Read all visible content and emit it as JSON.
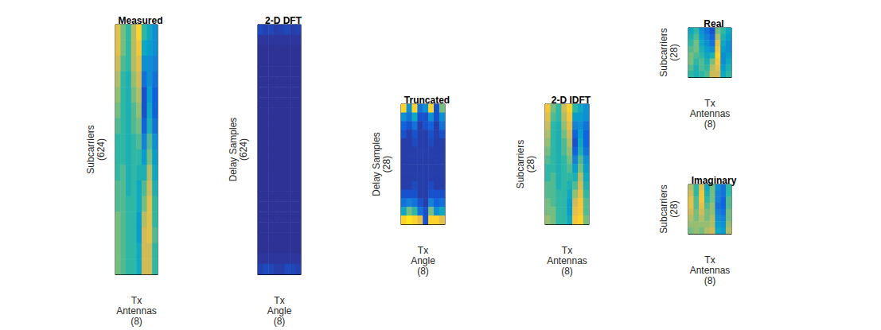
{
  "chart_data": [
    {
      "type": "heatmap",
      "title": "Measured",
      "x_label": "Tx\nAntennas\n(8)",
      "y_label": "Subcarriers\n(624)",
      "tick_labels": false,
      "zlim": [
        0,
        1
      ],
      "cells": [
        [
          0.8,
          0.6,
          0.5,
          0.7,
          0.9,
          0.5,
          0.4,
          0.3
        ],
        [
          0.8,
          0.6,
          0.5,
          0.7,
          0.85,
          0.4,
          0.35,
          0.3
        ],
        [
          0.75,
          0.55,
          0.5,
          0.7,
          0.8,
          0.3,
          0.3,
          0.25
        ],
        [
          0.7,
          0.5,
          0.45,
          0.65,
          0.75,
          0.2,
          0.3,
          0.2
        ],
        [
          0.65,
          0.5,
          0.45,
          0.6,
          0.7,
          0.1,
          0.35,
          0.15
        ],
        [
          0.6,
          0.5,
          0.45,
          0.55,
          0.65,
          0.1,
          0.4,
          0.15
        ],
        [
          0.55,
          0.5,
          0.45,
          0.55,
          0.6,
          0.15,
          0.45,
          0.2
        ],
        [
          0.5,
          0.5,
          0.45,
          0.5,
          0.55,
          0.25,
          0.55,
          0.3
        ],
        [
          0.5,
          0.5,
          0.45,
          0.5,
          0.5,
          0.35,
          0.6,
          0.35
        ],
        [
          0.5,
          0.55,
          0.45,
          0.5,
          0.45,
          0.45,
          0.7,
          0.4
        ],
        [
          0.55,
          0.55,
          0.45,
          0.5,
          0.4,
          0.55,
          0.75,
          0.45
        ],
        [
          0.55,
          0.55,
          0.5,
          0.5,
          0.4,
          0.6,
          0.8,
          0.5
        ],
        [
          0.6,
          0.55,
          0.5,
          0.5,
          0.35,
          0.7,
          0.8,
          0.5
        ],
        [
          0.6,
          0.55,
          0.5,
          0.5,
          0.35,
          0.75,
          0.8,
          0.55
        ],
        [
          0.6,
          0.55,
          0.5,
          0.5,
          0.4,
          0.75,
          0.75,
          0.5
        ],
        [
          0.6,
          0.55,
          0.5,
          0.5,
          0.4,
          0.75,
          0.75,
          0.5
        ]
      ]
    },
    {
      "type": "heatmap",
      "title": "2-D DFT",
      "x_label": "Tx\nAngle\n(8)",
      "y_label": "Delay Samples\n(624)",
      "tick_labels": false,
      "zlim": [
        0,
        1
      ],
      "cells": [
        [
          0.08,
          0.06,
          0.07,
          0.05,
          0.06,
          0.07,
          0.05,
          0.06
        ],
        [
          0.03,
          0.03,
          0.03,
          0.03,
          0.03,
          0.03,
          0.03,
          0.03
        ],
        [
          0.02,
          0.02,
          0.02,
          0.02,
          0.02,
          0.02,
          0.02,
          0.02
        ],
        [
          0.02,
          0.02,
          0.02,
          0.02,
          0.02,
          0.02,
          0.02,
          0.02
        ],
        [
          0.02,
          0.02,
          0.02,
          0.02,
          0.02,
          0.02,
          0.02,
          0.02
        ],
        [
          0.02,
          0.02,
          0.02,
          0.02,
          0.02,
          0.02,
          0.02,
          0.02
        ],
        [
          0.02,
          0.02,
          0.02,
          0.02,
          0.02,
          0.02,
          0.02,
          0.02
        ],
        [
          0.02,
          0.02,
          0.02,
          0.02,
          0.02,
          0.02,
          0.02,
          0.02
        ],
        [
          0.02,
          0.02,
          0.02,
          0.02,
          0.02,
          0.02,
          0.02,
          0.02
        ],
        [
          0.02,
          0.02,
          0.02,
          0.02,
          0.02,
          0.02,
          0.02,
          0.02
        ],
        [
          0.02,
          0.02,
          0.02,
          0.02,
          0.02,
          0.02,
          0.02,
          0.02
        ],
        [
          0.02,
          0.02,
          0.02,
          0.02,
          0.02,
          0.02,
          0.02,
          0.02
        ],
        [
          0.02,
          0.02,
          0.02,
          0.02,
          0.02,
          0.02,
          0.02,
          0.02
        ],
        [
          0.02,
          0.02,
          0.02,
          0.02,
          0.02,
          0.02,
          0.02,
          0.02
        ],
        [
          0.02,
          0.02,
          0.02,
          0.02,
          0.02,
          0.02,
          0.02,
          0.02
        ],
        [
          0.02,
          0.02,
          0.02,
          0.02,
          0.02,
          0.02,
          0.02,
          0.02
        ],
        [
          0.02,
          0.02,
          0.02,
          0.02,
          0.02,
          0.02,
          0.02,
          0.02
        ],
        [
          0.02,
          0.02,
          0.02,
          0.02,
          0.02,
          0.02,
          0.02,
          0.02
        ],
        [
          0.02,
          0.02,
          0.02,
          0.02,
          0.02,
          0.02,
          0.02,
          0.02
        ],
        [
          0.02,
          0.02,
          0.02,
          0.02,
          0.02,
          0.02,
          0.02,
          0.02
        ],
        [
          0.02,
          0.02,
          0.02,
          0.02,
          0.02,
          0.02,
          0.02,
          0.02
        ],
        [
          0.02,
          0.02,
          0.02,
          0.02,
          0.02,
          0.02,
          0.02,
          0.02
        ],
        [
          0.03,
          0.03,
          0.03,
          0.03,
          0.03,
          0.03,
          0.03,
          0.03
        ],
        [
          0.06,
          0.08,
          0.07,
          0.05,
          0.05,
          0.08,
          0.07,
          0.06
        ]
      ]
    },
    {
      "type": "heatmap",
      "title": "Truncated",
      "x_label": "Tx\nAngle\n(8)",
      "y_label": "Delay Samples\n(28)",
      "tick_labels": false,
      "zlim": [
        0,
        1
      ],
      "cells": [
        [
          0.9,
          0.3,
          0.9,
          0.2,
          0.3,
          0.9,
          0.1,
          0.6
        ],
        [
          0.3,
          0.2,
          0.4,
          0.1,
          0.1,
          0.3,
          0.1,
          0.3
        ],
        [
          0.15,
          0.1,
          0.2,
          0.05,
          0.1,
          0.15,
          0.05,
          0.2
        ],
        [
          0.1,
          0.05,
          0.1,
          0.05,
          0.05,
          0.1,
          0.05,
          0.1
        ],
        [
          0.05,
          0.05,
          0.08,
          0.05,
          0.05,
          0.08,
          0.05,
          0.05
        ],
        [
          0.05,
          0.05,
          0.05,
          0.05,
          0.05,
          0.05,
          0.05,
          0.05
        ],
        [
          0.05,
          0.05,
          0.05,
          0.05,
          0.05,
          0.05,
          0.05,
          0.05
        ],
        [
          0.05,
          0.05,
          0.05,
          0.05,
          0.05,
          0.05,
          0.05,
          0.05
        ],
        [
          0.05,
          0.05,
          0.05,
          0.05,
          0.05,
          0.05,
          0.05,
          0.05
        ],
        [
          0.05,
          0.05,
          0.08,
          0.05,
          0.05,
          0.08,
          0.05,
          0.05
        ],
        [
          0.1,
          0.1,
          0.1,
          0.05,
          0.05,
          0.1,
          0.1,
          0.1
        ],
        [
          0.2,
          0.25,
          0.2,
          0.1,
          0.05,
          0.25,
          0.15,
          0.2
        ],
        [
          0.4,
          0.6,
          0.5,
          0.2,
          0.1,
          0.6,
          0.3,
          0.4
        ],
        [
          0.9,
          0.95,
          0.9,
          0.8,
          0.1,
          0.9,
          0.9,
          0.8
        ]
      ]
    },
    {
      "type": "heatmap",
      "title": "2-D IDFT",
      "x_label": "Tx\nAntennas\n(8)",
      "y_label": "Subcarriers\n(28)",
      "tick_labels": false,
      "zlim": [
        0,
        1
      ],
      "cells": [
        [
          0.85,
          0.6,
          0.5,
          0.75,
          0.9,
          0.5,
          0.4,
          0.3
        ],
        [
          0.8,
          0.55,
          0.5,
          0.7,
          0.85,
          0.35,
          0.35,
          0.3
        ],
        [
          0.75,
          0.5,
          0.45,
          0.65,
          0.8,
          0.25,
          0.3,
          0.2
        ],
        [
          0.7,
          0.5,
          0.45,
          0.6,
          0.75,
          0.15,
          0.35,
          0.15
        ],
        [
          0.65,
          0.5,
          0.45,
          0.55,
          0.7,
          0.1,
          0.4,
          0.15
        ],
        [
          0.6,
          0.5,
          0.45,
          0.55,
          0.65,
          0.15,
          0.45,
          0.2
        ],
        [
          0.55,
          0.5,
          0.45,
          0.5,
          0.6,
          0.25,
          0.55,
          0.3
        ],
        [
          0.5,
          0.5,
          0.45,
          0.5,
          0.55,
          0.35,
          0.6,
          0.35
        ],
        [
          0.5,
          0.55,
          0.45,
          0.5,
          0.5,
          0.45,
          0.7,
          0.4
        ],
        [
          0.55,
          0.55,
          0.45,
          0.5,
          0.45,
          0.55,
          0.75,
          0.45
        ],
        [
          0.55,
          0.55,
          0.5,
          0.5,
          0.4,
          0.65,
          0.8,
          0.5
        ],
        [
          0.6,
          0.55,
          0.5,
          0.5,
          0.35,
          0.75,
          0.85,
          0.55
        ],
        [
          0.6,
          0.6,
          0.5,
          0.5,
          0.35,
          0.8,
          0.85,
          0.55
        ],
        [
          0.65,
          0.6,
          0.5,
          0.5,
          0.4,
          0.85,
          0.9,
          0.6
        ]
      ]
    },
    {
      "type": "heatmap",
      "title": "Real",
      "x_label": "Tx\nAntennas\n(8)",
      "y_label": "Subcarriers\n(28)",
      "tick_labels": false,
      "zlim": [
        0,
        1
      ],
      "cells": [
        [
          0.4,
          0.5,
          0.3,
          0.2,
          0.1,
          0.6,
          0.5,
          0.4
        ],
        [
          0.45,
          0.55,
          0.35,
          0.25,
          0.15,
          0.7,
          0.45,
          0.35
        ],
        [
          0.5,
          0.6,
          0.4,
          0.3,
          0.2,
          0.8,
          0.4,
          0.3
        ],
        [
          0.55,
          0.6,
          0.45,
          0.35,
          0.3,
          0.85,
          0.35,
          0.3
        ],
        [
          0.6,
          0.55,
          0.5,
          0.4,
          0.45,
          0.9,
          0.3,
          0.35
        ],
        [
          0.6,
          0.5,
          0.55,
          0.45,
          0.6,
          0.85,
          0.3,
          0.4
        ],
        [
          0.55,
          0.45,
          0.55,
          0.5,
          0.7,
          0.8,
          0.35,
          0.45
        ],
        [
          0.5,
          0.45,
          0.5,
          0.55,
          0.75,
          0.75,
          0.4,
          0.5
        ]
      ]
    },
    {
      "type": "heatmap",
      "title": "Imaginary",
      "x_label": "Tx\nAntennas\n(8)",
      "y_label": "Subcarriers\n(28)",
      "tick_labels": false,
      "zlim": [
        0,
        1
      ],
      "cells": [
        [
          0.7,
          0.5,
          0.8,
          0.4,
          0.6,
          0.3,
          0.2,
          0.5
        ],
        [
          0.75,
          0.5,
          0.85,
          0.45,
          0.6,
          0.25,
          0.2,
          0.5
        ],
        [
          0.8,
          0.55,
          0.85,
          0.5,
          0.6,
          0.25,
          0.15,
          0.55
        ],
        [
          0.8,
          0.55,
          0.8,
          0.55,
          0.65,
          0.2,
          0.15,
          0.55
        ],
        [
          0.75,
          0.6,
          0.75,
          0.6,
          0.65,
          0.25,
          0.2,
          0.6
        ],
        [
          0.7,
          0.6,
          0.7,
          0.6,
          0.7,
          0.3,
          0.25,
          0.6
        ],
        [
          0.65,
          0.65,
          0.65,
          0.65,
          0.7,
          0.35,
          0.3,
          0.65
        ],
        [
          0.6,
          0.65,
          0.6,
          0.7,
          0.75,
          0.4,
          0.35,
          0.7
        ]
      ]
    }
  ]
}
